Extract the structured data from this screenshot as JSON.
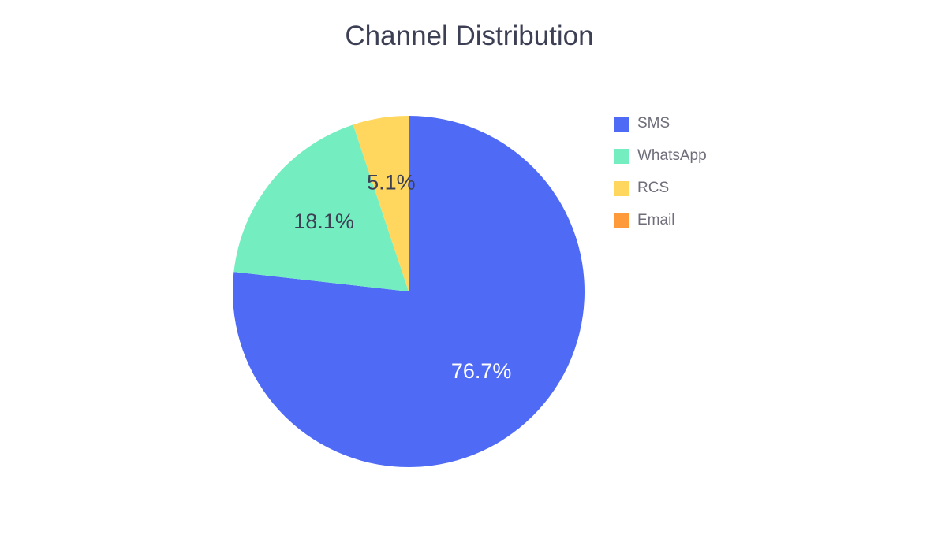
{
  "chart_data": {
    "type": "pie",
    "title": "Channel Distribution",
    "categories": [
      "SMS",
      "WhatsApp",
      "RCS",
      "Email"
    ],
    "values": [
      76.7,
      18.1,
      5.1,
      0.0
    ],
    "value_labels": [
      "76.7%",
      "18.1%",
      "5.1%",
      ""
    ],
    "colors": [
      "#4f6af5",
      "#74eec0",
      "#ffd75e",
      "#ff9a3a"
    ],
    "label_colors": [
      "#ffffff",
      "#3d4055",
      "#3d4055",
      "#3d4055"
    ],
    "legend_position": "right"
  }
}
